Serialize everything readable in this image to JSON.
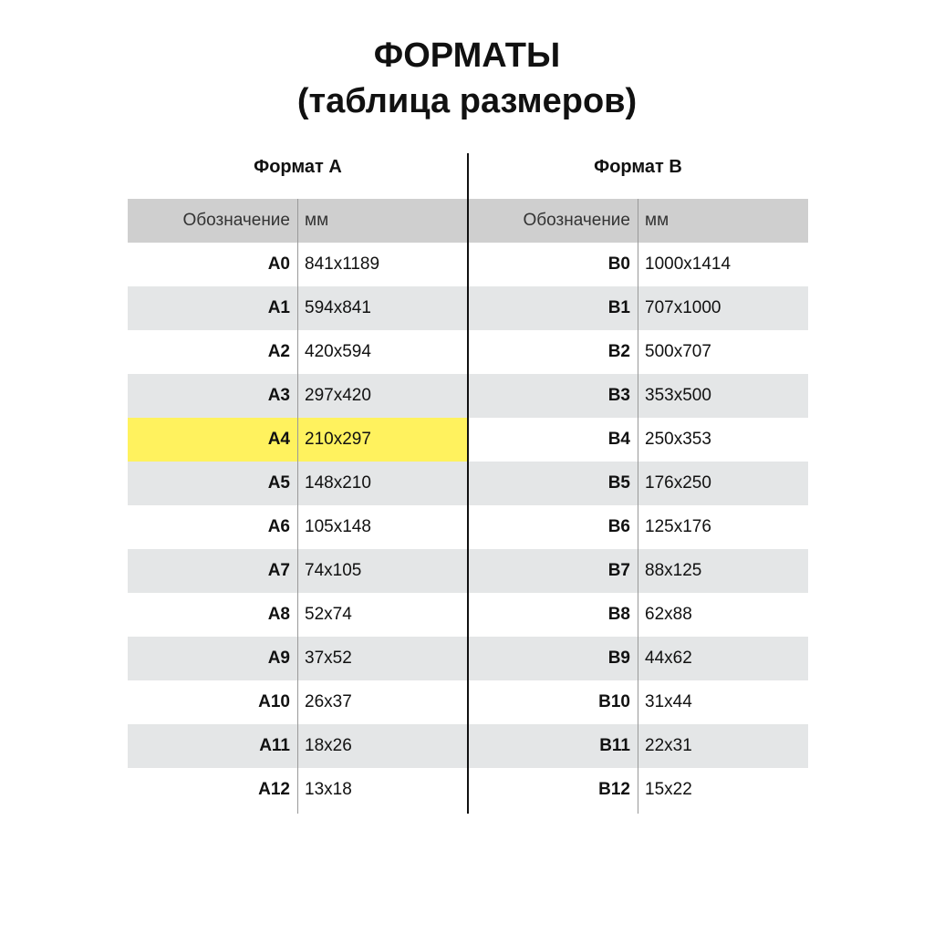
{
  "title": {
    "line1": "ФОРМАТЫ",
    "line2": "(таблица размеров)"
  },
  "highlight_color": "#fff25e",
  "format_a": {
    "heading": "Формат А",
    "col_designation": "Обозначение",
    "col_mm": "мм",
    "rows": [
      [
        "A0",
        "841x1189"
      ],
      [
        "A1",
        "594x841"
      ],
      [
        "A2",
        "420x594"
      ],
      [
        "A3",
        "297x420"
      ],
      [
        "A4",
        "210x297"
      ],
      [
        "A5",
        "148x210"
      ],
      [
        "A6",
        "105x148"
      ],
      [
        "A7",
        "74x105"
      ],
      [
        "A8",
        "52x74"
      ],
      [
        "A9",
        "37x52"
      ],
      [
        "A10",
        "26x37"
      ],
      [
        "A11",
        "18x26"
      ],
      [
        "A12",
        "13x18"
      ]
    ],
    "highlighted": "A4"
  },
  "format_b": {
    "heading": "Формат В",
    "col_designation": "Обозначение",
    "col_mm": "мм",
    "rows": [
      [
        "B0",
        "1000x1414"
      ],
      [
        "B1",
        "707x1000"
      ],
      [
        "B2",
        "500x707"
      ],
      [
        "B3",
        "353x500"
      ],
      [
        "B4",
        "250x353"
      ],
      [
        "B5",
        "176x250"
      ],
      [
        "B6",
        "125x176"
      ],
      [
        "B7",
        "88x125"
      ],
      [
        "B8",
        "62x88"
      ],
      [
        "B9",
        "44x62"
      ],
      [
        "B10",
        "31x44"
      ],
      [
        "B11",
        "22x31"
      ],
      [
        "B12",
        "15x22"
      ]
    ]
  }
}
